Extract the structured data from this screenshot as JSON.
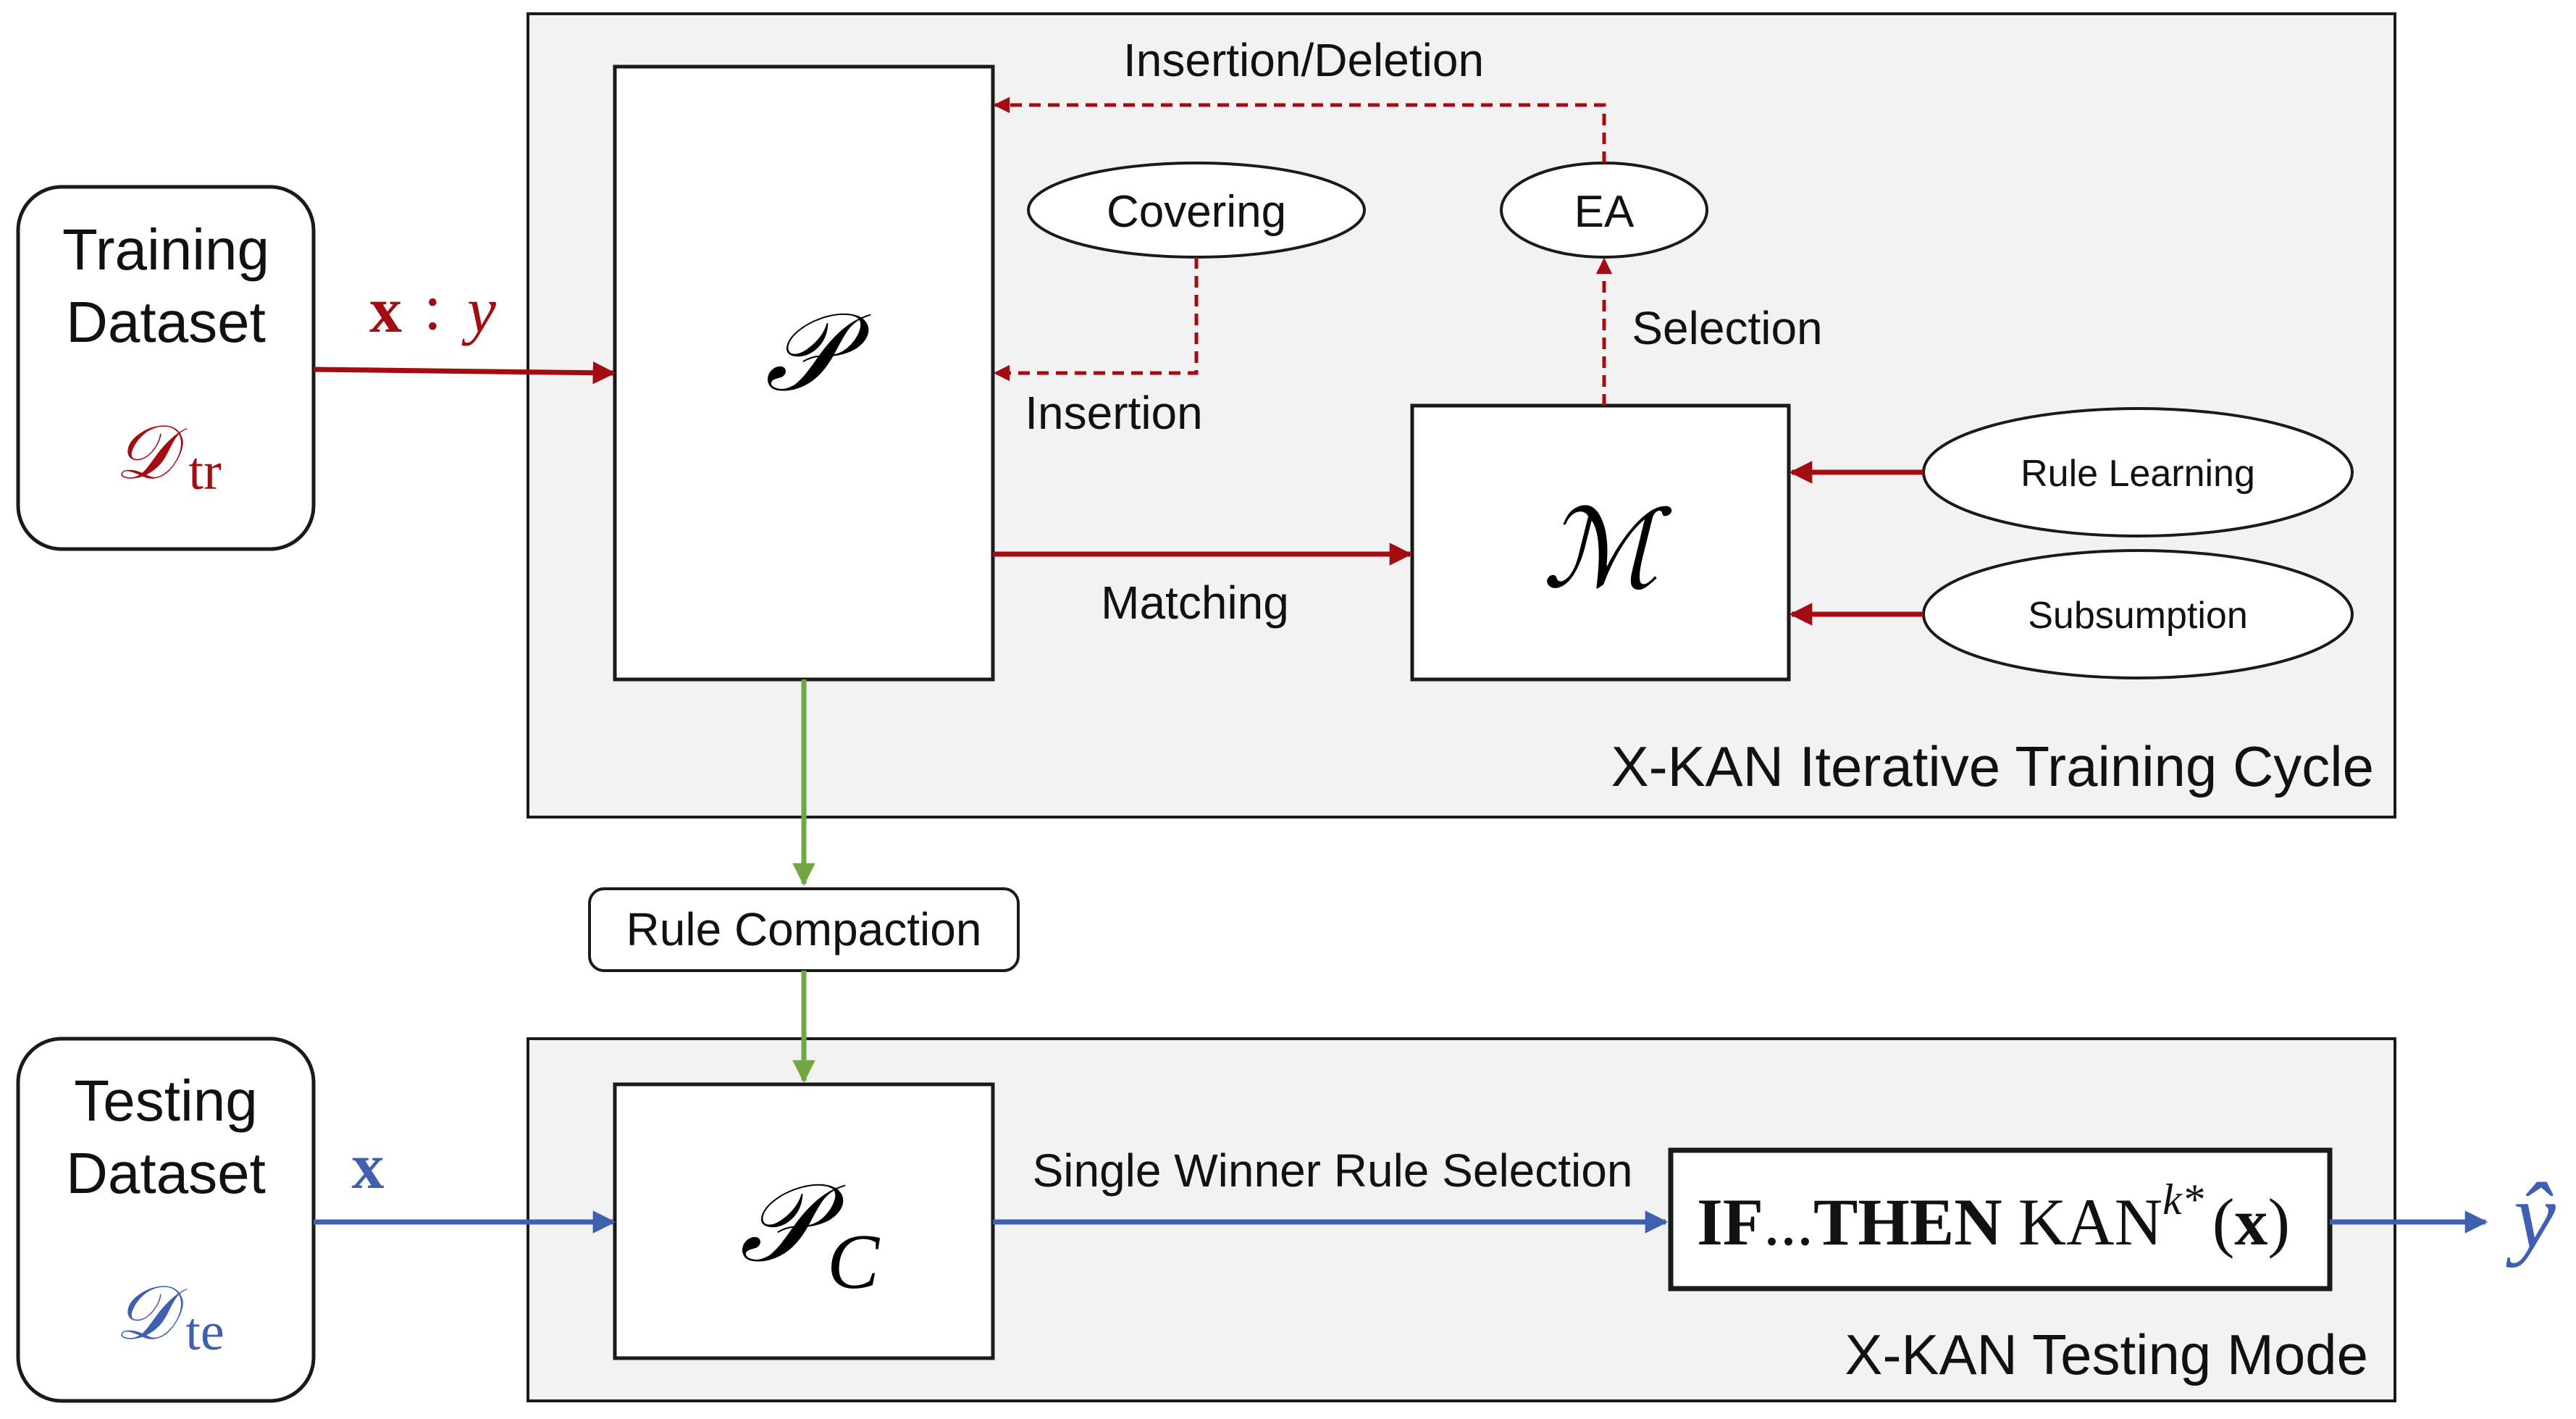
{
  "training_dataset": {
    "label_line1": "Training",
    "label_line2": "Dataset",
    "symbol_main": "𝒟",
    "symbol_sub": "tr"
  },
  "testing_dataset": {
    "label_line1": "Testing",
    "label_line2": "Dataset",
    "symbol_main": "𝒟",
    "symbol_sub": "te"
  },
  "training_input": {
    "x": "x",
    "colon": ":",
    "y": "y"
  },
  "testing_input": {
    "x": "x"
  },
  "training_cycle": {
    "title": "X-KAN Iterative Training Cycle",
    "population_symbol": "𝒫",
    "match_set_symbol": "ℳ",
    "covering": "Covering",
    "ea": "EA",
    "rule_learning": "Rule Learning",
    "subsumption": "Subsumption",
    "insertion_deletion": "Insertion/Deletion",
    "insertion": "Insertion",
    "selection": "Selection",
    "matching": "Matching"
  },
  "rule_compaction": "Rule Compaction",
  "testing_mode": {
    "title": "X-KAN Testing Mode",
    "compacted_symbol_main": "𝒫",
    "compacted_symbol_sub": "C",
    "single_winner": "Single Winner Rule Selection",
    "rule_if": "IF",
    "rule_dots": "...",
    "rule_then": "THEN",
    "rule_kan": "KAN",
    "rule_sup": "k*",
    "rule_arg_open": "(",
    "rule_arg_x": "x",
    "rule_arg_close": ")"
  },
  "output_symbol": "ŷ",
  "colors": {
    "training_red": "#a30d12",
    "testing_blue": "#3f5fb0",
    "compaction_green": "#72a642",
    "panel_fill": "#f2f2f2",
    "border": "#1a1a1a"
  }
}
